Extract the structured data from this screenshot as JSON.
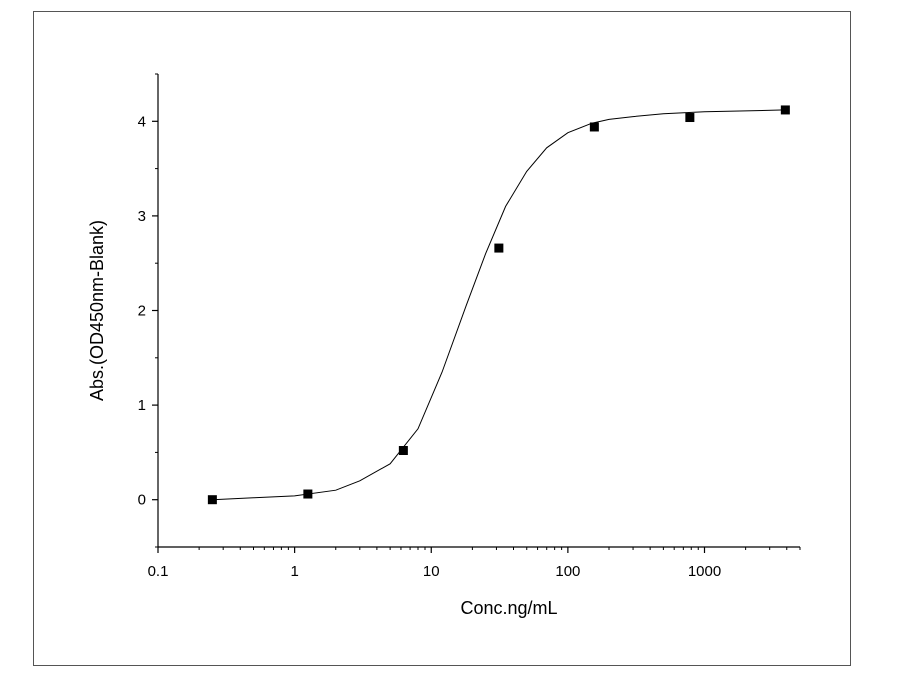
{
  "chart_data": {
    "type": "scatter",
    "x_scale": "log",
    "xlabel": "Conc.ng/mL",
    "ylabel": "Abs.(OD450nm-Blank)",
    "xlim": [
      0.1,
      5000
    ],
    "ylim": [
      -0.5,
      4.5
    ],
    "x_ticks": [
      0.1,
      1,
      10,
      100,
      1000
    ],
    "x_tick_labels": [
      "0.1",
      "1",
      "10",
      "100",
      "1000"
    ],
    "y_ticks": [
      0,
      1,
      2,
      3,
      4
    ],
    "y_tick_labels": [
      "0",
      "1",
      "2",
      "3",
      "4"
    ],
    "grid": false,
    "colors": {
      "marker": "#000000",
      "curve": "#000000",
      "axis": "#000000"
    },
    "series": [
      {
        "marker": "square",
        "x": [
          0.25,
          1.25,
          6.25,
          31.25,
          156.25,
          781.25,
          3906.25
        ],
        "y": [
          0.0,
          0.06,
          0.52,
          2.66,
          3.94,
          4.04,
          4.12
        ]
      }
    ],
    "fit_curve": {
      "x": [
        0.25,
        0.5,
        1,
        2,
        3,
        5,
        8,
        12,
        18,
        25,
        35,
        50,
        70,
        100,
        150,
        200,
        300,
        500,
        1000,
        2000,
        3906.25
      ],
      "y": [
        0.0,
        0.02,
        0.04,
        0.1,
        0.2,
        0.38,
        0.75,
        1.35,
        2.05,
        2.6,
        3.1,
        3.47,
        3.72,
        3.88,
        3.98,
        4.02,
        4.05,
        4.08,
        4.1,
        4.11,
        4.12
      ]
    }
  }
}
